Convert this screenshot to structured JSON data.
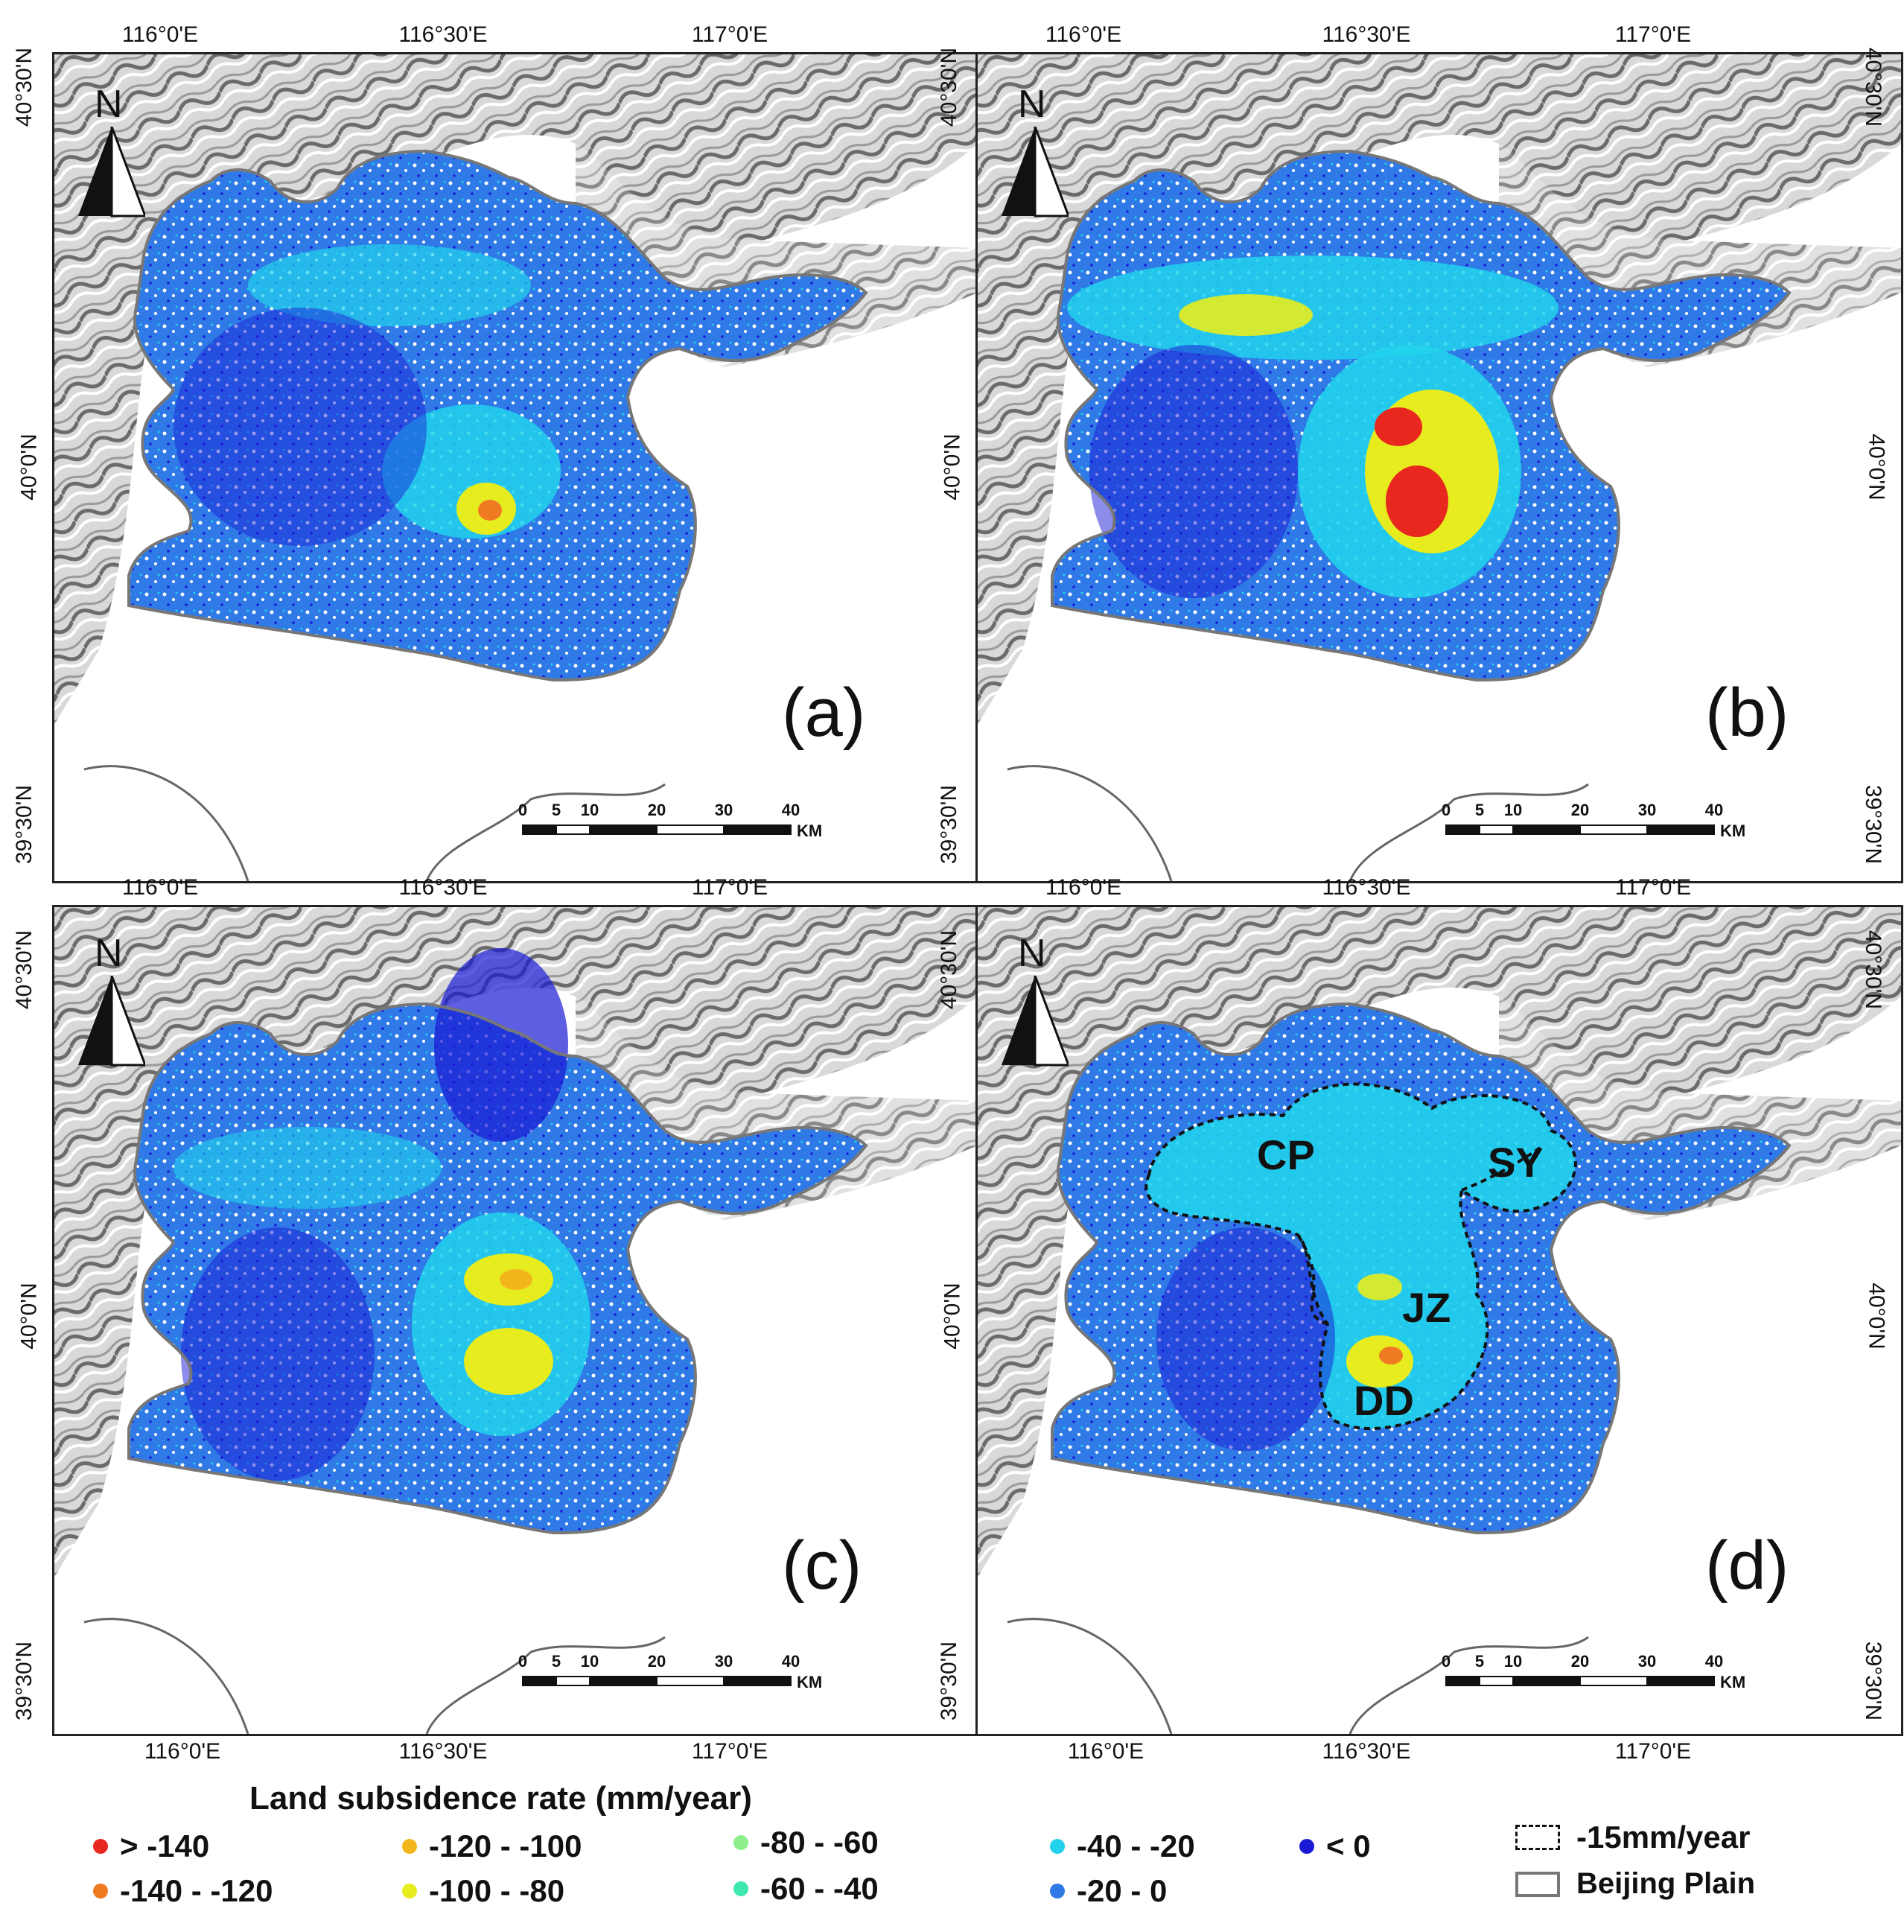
{
  "axes": {
    "lon_labels": [
      "116°0'E",
      "116°30'E",
      "117°0'E"
    ],
    "lat_labels": [
      "40°30'N",
      "40°0'N",
      "39°30'N"
    ]
  },
  "north_arrow": {
    "label": "N",
    "icon": "north-arrow-icon"
  },
  "scalebar": {
    "ticks": [
      "0",
      "5",
      "10",
      "20",
      "30",
      "40"
    ],
    "unit": "KM"
  },
  "panels": [
    {
      "id": "a",
      "letter": "(a)"
    },
    {
      "id": "b",
      "letter": "(b)"
    },
    {
      "id": "c",
      "letter": "(c)"
    },
    {
      "id": "d",
      "letter": "(d)"
    }
  ],
  "zones": [
    "CP",
    "SY",
    "JZ",
    "DD"
  ],
  "legend": {
    "title": "Land subsidence rate  (mm/year)",
    "classes": [
      {
        "label": "> -140",
        "color": "#e8281e"
      },
      {
        "label": "-140 - -120",
        "color": "#f07a22"
      },
      {
        "label": "-120 - -100",
        "color": "#f2b51c"
      },
      {
        "label": "-100 - -80",
        "color": "#e7ec1e"
      },
      {
        "label": "-80 - -60",
        "color": "#8ef08a"
      },
      {
        "label": "-60 - -40",
        "color": "#3ee8b0"
      },
      {
        "label": "-40 - -20",
        "color": "#22d2ec"
      },
      {
        "label": "-20 - 0",
        "color": "#2f7ae6"
      },
      {
        "label": "< 0",
        "color": "#1a1ad6"
      }
    ],
    "boundaries": [
      {
        "label": "-15mm/year",
        "style": "dashed"
      },
      {
        "label": "Beijing Plain",
        "style": "solid"
      }
    ]
  }
}
